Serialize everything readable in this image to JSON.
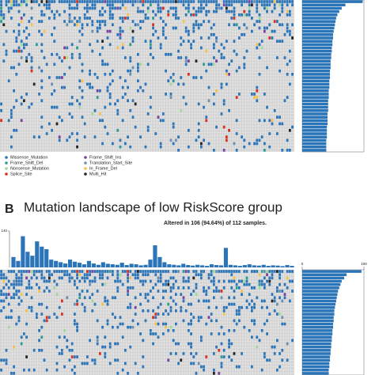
{
  "panel_a": {
    "legend": [
      {
        "label": "Missense_Mutation",
        "color": "#2b74b8"
      },
      {
        "label": "Frame_Shift_Del",
        "color": "#2a9d8f"
      },
      {
        "label": "Nonsense_Mutation",
        "color": "#9fd89a"
      },
      {
        "label": "Splice_Site",
        "color": "#d7301f"
      },
      {
        "label": "Frame_Shift_Ins",
        "color": "#7b3fa0"
      },
      {
        "label": "Translation_Start_Site",
        "color": "#6a8fb0"
      },
      {
        "label": "In_Frame_Del",
        "color": "#f2c14e"
      },
      {
        "label": "Multi_Hit",
        "color": "#222222"
      }
    ],
    "row_bars": {
      "xlim": [
        0,
        100
      ],
      "values": [
        98,
        70,
        64,
        60,
        57,
        55,
        54,
        53,
        52,
        51,
        50,
        50,
        49,
        49,
        48,
        48,
        47,
        47,
        46,
        46,
        46,
        45,
        45,
        45,
        44,
        44,
        44,
        43,
        43,
        43,
        42,
        42,
        42,
        42,
        41,
        41,
        41,
        41,
        40,
        40,
        40,
        40,
        39,
        39,
        39,
        39
      ]
    }
  },
  "panel_b": {
    "label": "B",
    "title": "Mutation landscape of low RiskScore group",
    "subtitle": "Altered in 106 (94.64%) of 112 samples.",
    "top_bars": {
      "ylim": [
        0,
        140
      ],
      "yticks": [
        140
      ],
      "values": [
        40,
        25,
        120,
        60,
        45,
        100,
        80,
        70,
        30,
        25,
        20,
        15,
        30,
        22,
        18,
        12,
        25,
        15,
        10,
        20,
        14,
        12,
        10,
        18,
        9,
        14,
        12,
        8,
        10,
        30,
        85,
        40,
        20,
        12,
        10,
        8,
        14,
        9,
        7,
        10,
        8,
        6,
        12,
        9,
        8,
        75,
        10,
        8,
        6,
        9,
        12,
        8,
        7,
        10,
        6,
        8,
        7,
        5,
        9,
        6
      ]
    },
    "row_bars": {
      "xlim": [
        0,
        100
      ],
      "xticks": [
        0,
        100
      ],
      "values": [
        96,
        72,
        68,
        64,
        62,
        60,
        58,
        57,
        56,
        55,
        54,
        53,
        52,
        52,
        51,
        51,
        50,
        50,
        49,
        49,
        48,
        48,
        47,
        47,
        46,
        46,
        45,
        45,
        44,
        44,
        43,
        43
      ]
    }
  }
}
